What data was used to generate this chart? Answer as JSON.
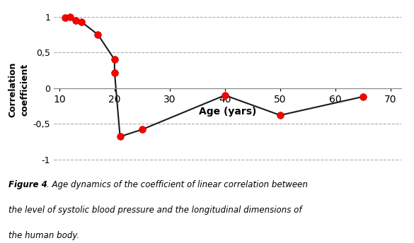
{
  "x": [
    11,
    12,
    13,
    14,
    17,
    20,
    20,
    21,
    25,
    40,
    50,
    65
  ],
  "y": [
    0.99,
    1.0,
    0.95,
    0.93,
    0.75,
    0.4,
    0.22,
    -0.68,
    -0.58,
    -0.1,
    -0.38,
    -0.12
  ],
  "line_color": "#1a1a1a",
  "marker_color": "#ff0000",
  "marker_edge_color": "#bb0000",
  "marker_size": 7,
  "line_width": 1.5,
  "xlabel": "Age (yars)",
  "ylabel": "Correlation\ncoefficient",
  "xlim": [
    9,
    72
  ],
  "ylim": [
    -1.15,
    1.1
  ],
  "xticks": [
    10,
    20,
    30,
    40,
    50,
    60,
    70
  ],
  "yticks": [
    -1,
    -0.5,
    0,
    0.5,
    1
  ],
  "ytick_labels": [
    "-1",
    "-0,5",
    "0",
    "0,5",
    "1"
  ],
  "grid_color": "#aaaaaa",
  "background_color": "#ffffff",
  "caption_bold": "Figure 4",
  "caption_italic": ". Age dynamics of the coefficient of linear correlation between the level of systolic blood pressure and the longitudinal dimensions of the human body."
}
